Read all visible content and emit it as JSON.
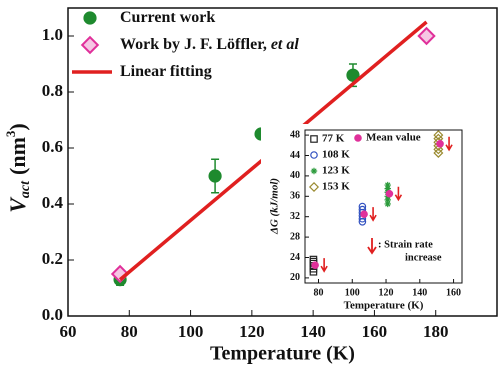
{
  "chart_data": [
    {
      "type": "scatter",
      "xlabel": "Temperature (K)",
      "ylabel": {
        "symbol": "V",
        "subscript": "act",
        "unit": "(nm",
        "superscript": "3",
        "close": ")"
      },
      "xlim": [
        60,
        200
      ],
      "ylim": [
        0,
        1.1
      ],
      "xticks": [
        60,
        80,
        100,
        120,
        140,
        160,
        180
      ],
      "yticks": [
        {
          "value": 0,
          "label": "0.0"
        },
        0.2,
        0.4,
        0.6,
        0.8,
        {
          "value": 1,
          "label": "1.0"
        }
      ],
      "series": [
        {
          "name": "Current work",
          "color": "#1e8a2e",
          "marker": "circle",
          "x": [
            77,
            108,
            123,
            153
          ],
          "values": [
            0.13,
            0.5,
            0.65,
            0.86
          ],
          "errors": [
            0.02,
            0.06,
            0.015,
            0.04
          ]
        },
        {
          "name": "Work by J. F. Löffler, ",
          "name_italic": "et al",
          "color": "#e0309a",
          "marker": "diamond",
          "x": [
            77,
            177
          ],
          "values": [
            0.15,
            1.0
          ]
        },
        {
          "name": "Linear fitting",
          "color": "#e02020",
          "marker": "line",
          "x": [
            77,
            177
          ],
          "values": [
            0.13,
            1.05
          ]
        }
      ]
    },
    {
      "type": "scatter",
      "xlabel": "Temperature (K)",
      "ylabel": "ΔG (kJ/mol)",
      "xlim": [
        72,
        165
      ],
      "ylim": [
        19,
        49
      ],
      "xticks": [
        80,
        100,
        120,
        140,
        160
      ],
      "yticks": [
        20,
        24,
        28,
        32,
        36,
        40,
        44,
        48
      ],
      "annotation": [
        ": Strain rate",
        "increase"
      ],
      "series": [
        {
          "name": "77 K",
          "color": "#222222",
          "marker": "square",
          "x": [
            77,
            77,
            77,
            77,
            77,
            77
          ],
          "values": [
            21.2,
            21.8,
            22.3,
            22.8,
            23.2,
            23.6
          ]
        },
        {
          "name": "108 K",
          "color": "#3050c0",
          "marker": "circle",
          "x": [
            106,
            106,
            106,
            106,
            106,
            106
          ],
          "values": [
            31.0,
            31.6,
            32.2,
            32.8,
            33.4,
            34.0
          ]
        },
        {
          "name": "123 K",
          "color": "#2a9a3a",
          "marker": "star",
          "x": [
            121,
            121,
            121,
            121,
            121,
            121
          ],
          "values": [
            34.5,
            35.3,
            36.0,
            36.8,
            37.5,
            38.2
          ]
        },
        {
          "name": "153 K",
          "color": "#9a8a30",
          "marker": "diamond",
          "x": [
            151,
            151,
            151,
            151,
            151,
            151
          ],
          "values": [
            44.5,
            45.2,
            45.9,
            46.6,
            47.3,
            48.0
          ]
        },
        {
          "name": "Mean value",
          "color": "#e0309a",
          "marker": "dot",
          "x": [
            78,
            107,
            122,
            152
          ],
          "values": [
            22.5,
            32.5,
            36.5,
            46.3
          ]
        }
      ]
    }
  ]
}
